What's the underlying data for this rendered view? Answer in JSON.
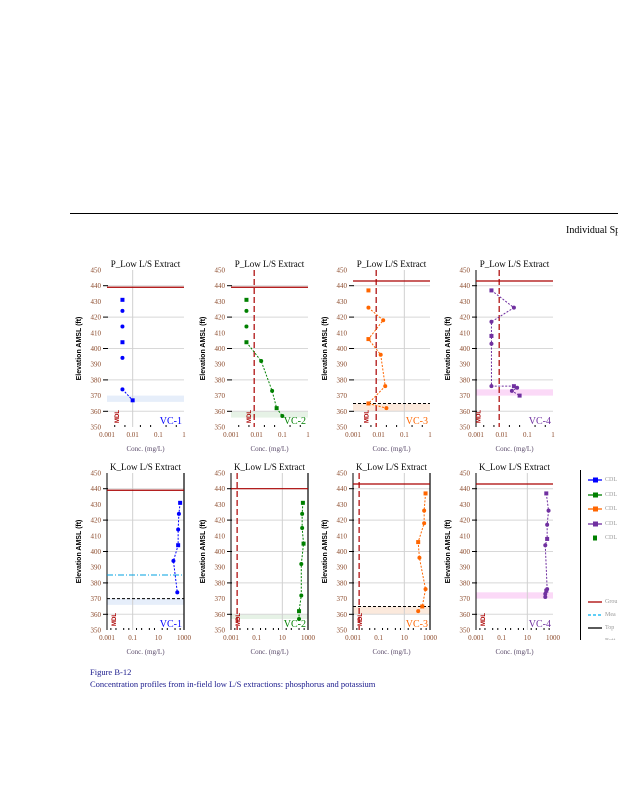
{
  "header": {
    "title": "Individual Sp"
  },
  "caption": {
    "figure": "Figure B-12",
    "text": "Concentration profiles from in-field low L/S extractions: phosphorus and potassium"
  },
  "legend": {
    "items": [
      {
        "label": "CDL",
        "color": "#0000ff",
        "style": "solid-marker"
      },
      {
        "label": "CDL",
        "color": "#008000",
        "style": "solid-marker"
      },
      {
        "label": "CDL",
        "color": "#ff6600",
        "style": "solid-marker"
      },
      {
        "label": "CDL",
        "color": "#7030a0",
        "style": "solid-marker"
      },
      {
        "label": "CDL",
        "color": "#008000",
        "style": "square"
      },
      {
        "label": "Grou",
        "color": "#aa0000",
        "style": "solid"
      },
      {
        "label": "Mea",
        "color": "#00b0f0",
        "style": "dash"
      },
      {
        "label": "Top",
        "color": "#000000",
        "style": "solid"
      },
      {
        "label": "Bott",
        "color": "#000000",
        "style": "dot"
      },
      {
        "label": "MDL",
        "color": "#aa0000",
        "style": "dashdot"
      }
    ]
  },
  "chart_data": [
    {
      "type": "line",
      "title": "P_Low L/S Extract",
      "xlabel": "Conc. (mg/L)",
      "ylabel": "Elevation AMSL (ft)",
      "xscale": "log",
      "xlim": [
        0.001,
        1
      ],
      "xticks": [
        "0.001",
        "0.01",
        "0.1",
        "1"
      ],
      "ylim": [
        350,
        450
      ],
      "yticks": [
        "350",
        "360",
        "370",
        "380",
        "390",
        "400",
        "410",
        "420",
        "430",
        "440",
        "450"
      ],
      "well": "VC-1",
      "color": "#0000ff",
      "ground": 439,
      "band": [
        366,
        370
      ],
      "mdl": null,
      "mdl_label": "MDL",
      "mdl_label_x": 0.003,
      "gridx": 0.01,
      "points": [
        [
          0.004,
          431
        ],
        [
          0.004,
          424
        ],
        [
          0.004,
          414
        ],
        [
          0.004,
          404
        ],
        [
          0.004,
          394
        ],
        [
          0.004,
          374
        ],
        [
          0.01,
          367
        ]
      ],
      "connect_from": 5
    },
    {
      "type": "line",
      "title": "P_Low L/S Extract",
      "xlabel": "Conc. (mg/L)",
      "ylabel": "Elevation AMSL (ft)",
      "xscale": "log",
      "xlim": [
        0.001,
        1
      ],
      "xticks": [
        "0.001",
        "0.01",
        "0.1",
        "1"
      ],
      "ylim": [
        350,
        450
      ],
      "yticks": [
        "350",
        "360",
        "370",
        "380",
        "390",
        "400",
        "410",
        "420",
        "430",
        "440",
        "450"
      ],
      "well": "VC-2",
      "color": "#008000",
      "ground": 439,
      "band": [
        356,
        360
      ],
      "mdl": 0.008,
      "mdl_label": "MDL",
      "mdl_label_x": 0.006,
      "points": [
        [
          0.004,
          431
        ],
        [
          0.004,
          424
        ],
        [
          0.004,
          414
        ],
        [
          0.004,
          404
        ],
        [
          0.015,
          392
        ],
        [
          0.04,
          373
        ],
        [
          0.06,
          362
        ],
        [
          0.1,
          357
        ]
      ],
      "connect_from": 3
    },
    {
      "type": "line",
      "title": "P_Low L/S Extract",
      "xlabel": "Conc. (mg/L)",
      "ylabel": "Elevation AMSL (ft)",
      "xscale": "log",
      "xlim": [
        0.001,
        1
      ],
      "xticks": [
        "0.001",
        "0.01",
        "0.1",
        "1"
      ],
      "ylim": [
        350,
        450
      ],
      "yticks": [
        "350",
        "360",
        "370",
        "380",
        "390",
        "400",
        "410",
        "420",
        "430",
        "440",
        "450"
      ],
      "well": "VC-3",
      "color": "#ff6600",
      "ground": 443,
      "band": [
        360,
        365
      ],
      "bottom": 365,
      "mdl": 0.008,
      "mdl_label": "MDL",
      "mdl_label_x": 0.004,
      "gridx": 0.1,
      "points": [
        [
          0.004,
          437
        ],
        [
          0.004,
          426
        ],
        [
          0.015,
          418
        ],
        [
          0.004,
          406
        ],
        [
          0.012,
          396
        ],
        [
          0.018,
          376
        ],
        [
          0.004,
          365
        ],
        [
          0.02,
          362
        ]
      ],
      "connect_from": 1
    },
    {
      "type": "line",
      "title": "P_Low L/S Extract",
      "xlabel": "Conc. (mg/L)",
      "ylabel": "Elevation AMSL (ft)",
      "xscale": "log",
      "xlim": [
        0.001,
        1
      ],
      "xticks": [
        "0.001",
        "0.01",
        "0.1",
        "1"
      ],
      "ylim": [
        350,
        450
      ],
      "yticks": [
        "350",
        "360",
        "370",
        "380",
        "390",
        "400",
        "410",
        "420",
        "430",
        "440",
        "450"
      ],
      "well": "VC-4",
      "color": "#7030a0",
      "ground": 443,
      "band": [
        370,
        374
      ],
      "mdl": 0.008,
      "mdl_label": "MDL",
      "mdl_label_x": 0.0015,
      "points": [
        [
          0.004,
          437
        ],
        [
          0.03,
          426
        ],
        [
          0.004,
          417
        ],
        [
          0.004,
          408
        ],
        [
          0.004,
          403
        ],
        [
          0.004,
          376
        ],
        [
          0.03,
          376
        ],
        [
          0.04,
          375
        ],
        [
          0.025,
          373
        ],
        [
          0.05,
          370
        ]
      ],
      "connect_from": 0
    },
    {
      "type": "line",
      "title": "K_Low L/S Extract",
      "xlabel": "Conc. (mg/L)",
      "ylabel": "Elevation AMSL (ft)",
      "xscale": "log",
      "xlim": [
        0.001,
        1000
      ],
      "xticks": [
        "0.001",
        "0.1",
        "10",
        "1000"
      ],
      "ylim": [
        350,
        450
      ],
      "yticks": [
        "350",
        "360",
        "370",
        "380",
        "390",
        "400",
        "410",
        "420",
        "430",
        "440",
        "450"
      ],
      "well": "VC-1",
      "color": "#0000ff",
      "ground": 439,
      "band": [
        366,
        370
      ],
      "bottom": 370,
      "mean": 385,
      "mdl": null,
      "mdl_label": "MDL",
      "mdl_label_x": 0.005,
      "gridx": 0.1,
      "points": [
        [
          500,
          431
        ],
        [
          400,
          424
        ],
        [
          350,
          414
        ],
        [
          350,
          404
        ],
        [
          150,
          394
        ],
        [
          300,
          374
        ]
      ],
      "connect_from": 0
    },
    {
      "type": "line",
      "title": "K_Low L/S Extract",
      "xlabel": "Conc. (mg/L)",
      "ylabel": "Elevation AMSL (ft)",
      "xscale": "log",
      "xlim": [
        0.001,
        1000
      ],
      "xticks": [
        "0.001",
        "0.1",
        "10",
        "1000"
      ],
      "ylim": [
        350,
        450
      ],
      "yticks": [
        "350",
        "360",
        "370",
        "380",
        "390",
        "400",
        "410",
        "420",
        "430",
        "440",
        "450"
      ],
      "well": "VC-2",
      "color": "#008000",
      "ground": 440,
      "band": [
        357,
        360
      ],
      "mdl": 0.003,
      "mdl_label": "MDL",
      "mdl_label_x": 0.005,
      "gridx": 10,
      "points": [
        [
          400,
          431
        ],
        [
          350,
          424
        ],
        [
          350,
          415
        ],
        [
          450,
          405
        ],
        [
          300,
          392
        ],
        [
          300,
          372
        ],
        [
          200,
          362
        ],
        [
          200,
          357
        ]
      ],
      "connect_from": 0
    },
    {
      "type": "line",
      "title": "K_Low L/S Extract",
      "xlabel": "Conc. (mg/L)",
      "ylabel": "Elevation AMSL (ft)",
      "xscale": "log",
      "xlim": [
        0.001,
        1000
      ],
      "xticks": [
        "0.001",
        "0.1",
        "10",
        "1000"
      ],
      "ylim": [
        350,
        450
      ],
      "yticks": [
        "350",
        "360",
        "370",
        "380",
        "390",
        "400",
        "410",
        "420",
        "430",
        "440",
        "450"
      ],
      "well": "VC-3",
      "color": "#ff6600",
      "ground": 443,
      "band": [
        360,
        365
      ],
      "bottom": 365,
      "mdl": 0.003,
      "mdl_label": "MDL",
      "mdl_label_x": 0.005,
      "gridx": 10,
      "points": [
        [
          450,
          437
        ],
        [
          350,
          426
        ],
        [
          350,
          418
        ],
        [
          120,
          406
        ],
        [
          150,
          396
        ],
        [
          450,
          376
        ],
        [
          250,
          365
        ],
        [
          120,
          362
        ]
      ],
      "connect_from": 0
    },
    {
      "type": "line",
      "title": "K_Low L/S Extract",
      "xlabel": "Conc. (mg/L)",
      "ylabel": "Elevation AMSL (ft)",
      "xscale": "log",
      "xlim": [
        0.001,
        1000
      ],
      "xticks": [
        "0.001",
        "0.1",
        "10",
        "1000"
      ],
      "ylim": [
        350,
        450
      ],
      "yticks": [
        "350",
        "360",
        "370",
        "380",
        "390",
        "400",
        "410",
        "420",
        "430",
        "440",
        "450"
      ],
      "well": "VC-4",
      "color": "#7030a0",
      "ground": 443,
      "band": [
        370,
        374
      ],
      "mdl": null,
      "mdl_label": "MDL",
      "mdl_label_x": 0.005,
      "gridx": 10,
      "points": [
        [
          300,
          437
        ],
        [
          450,
          426
        ],
        [
          350,
          417
        ],
        [
          350,
          408
        ],
        [
          250,
          404
        ],
        [
          350,
          376
        ],
        [
          300,
          375
        ],
        [
          250,
          373
        ],
        [
          250,
          371
        ]
      ],
      "connect_from": 0
    }
  ]
}
